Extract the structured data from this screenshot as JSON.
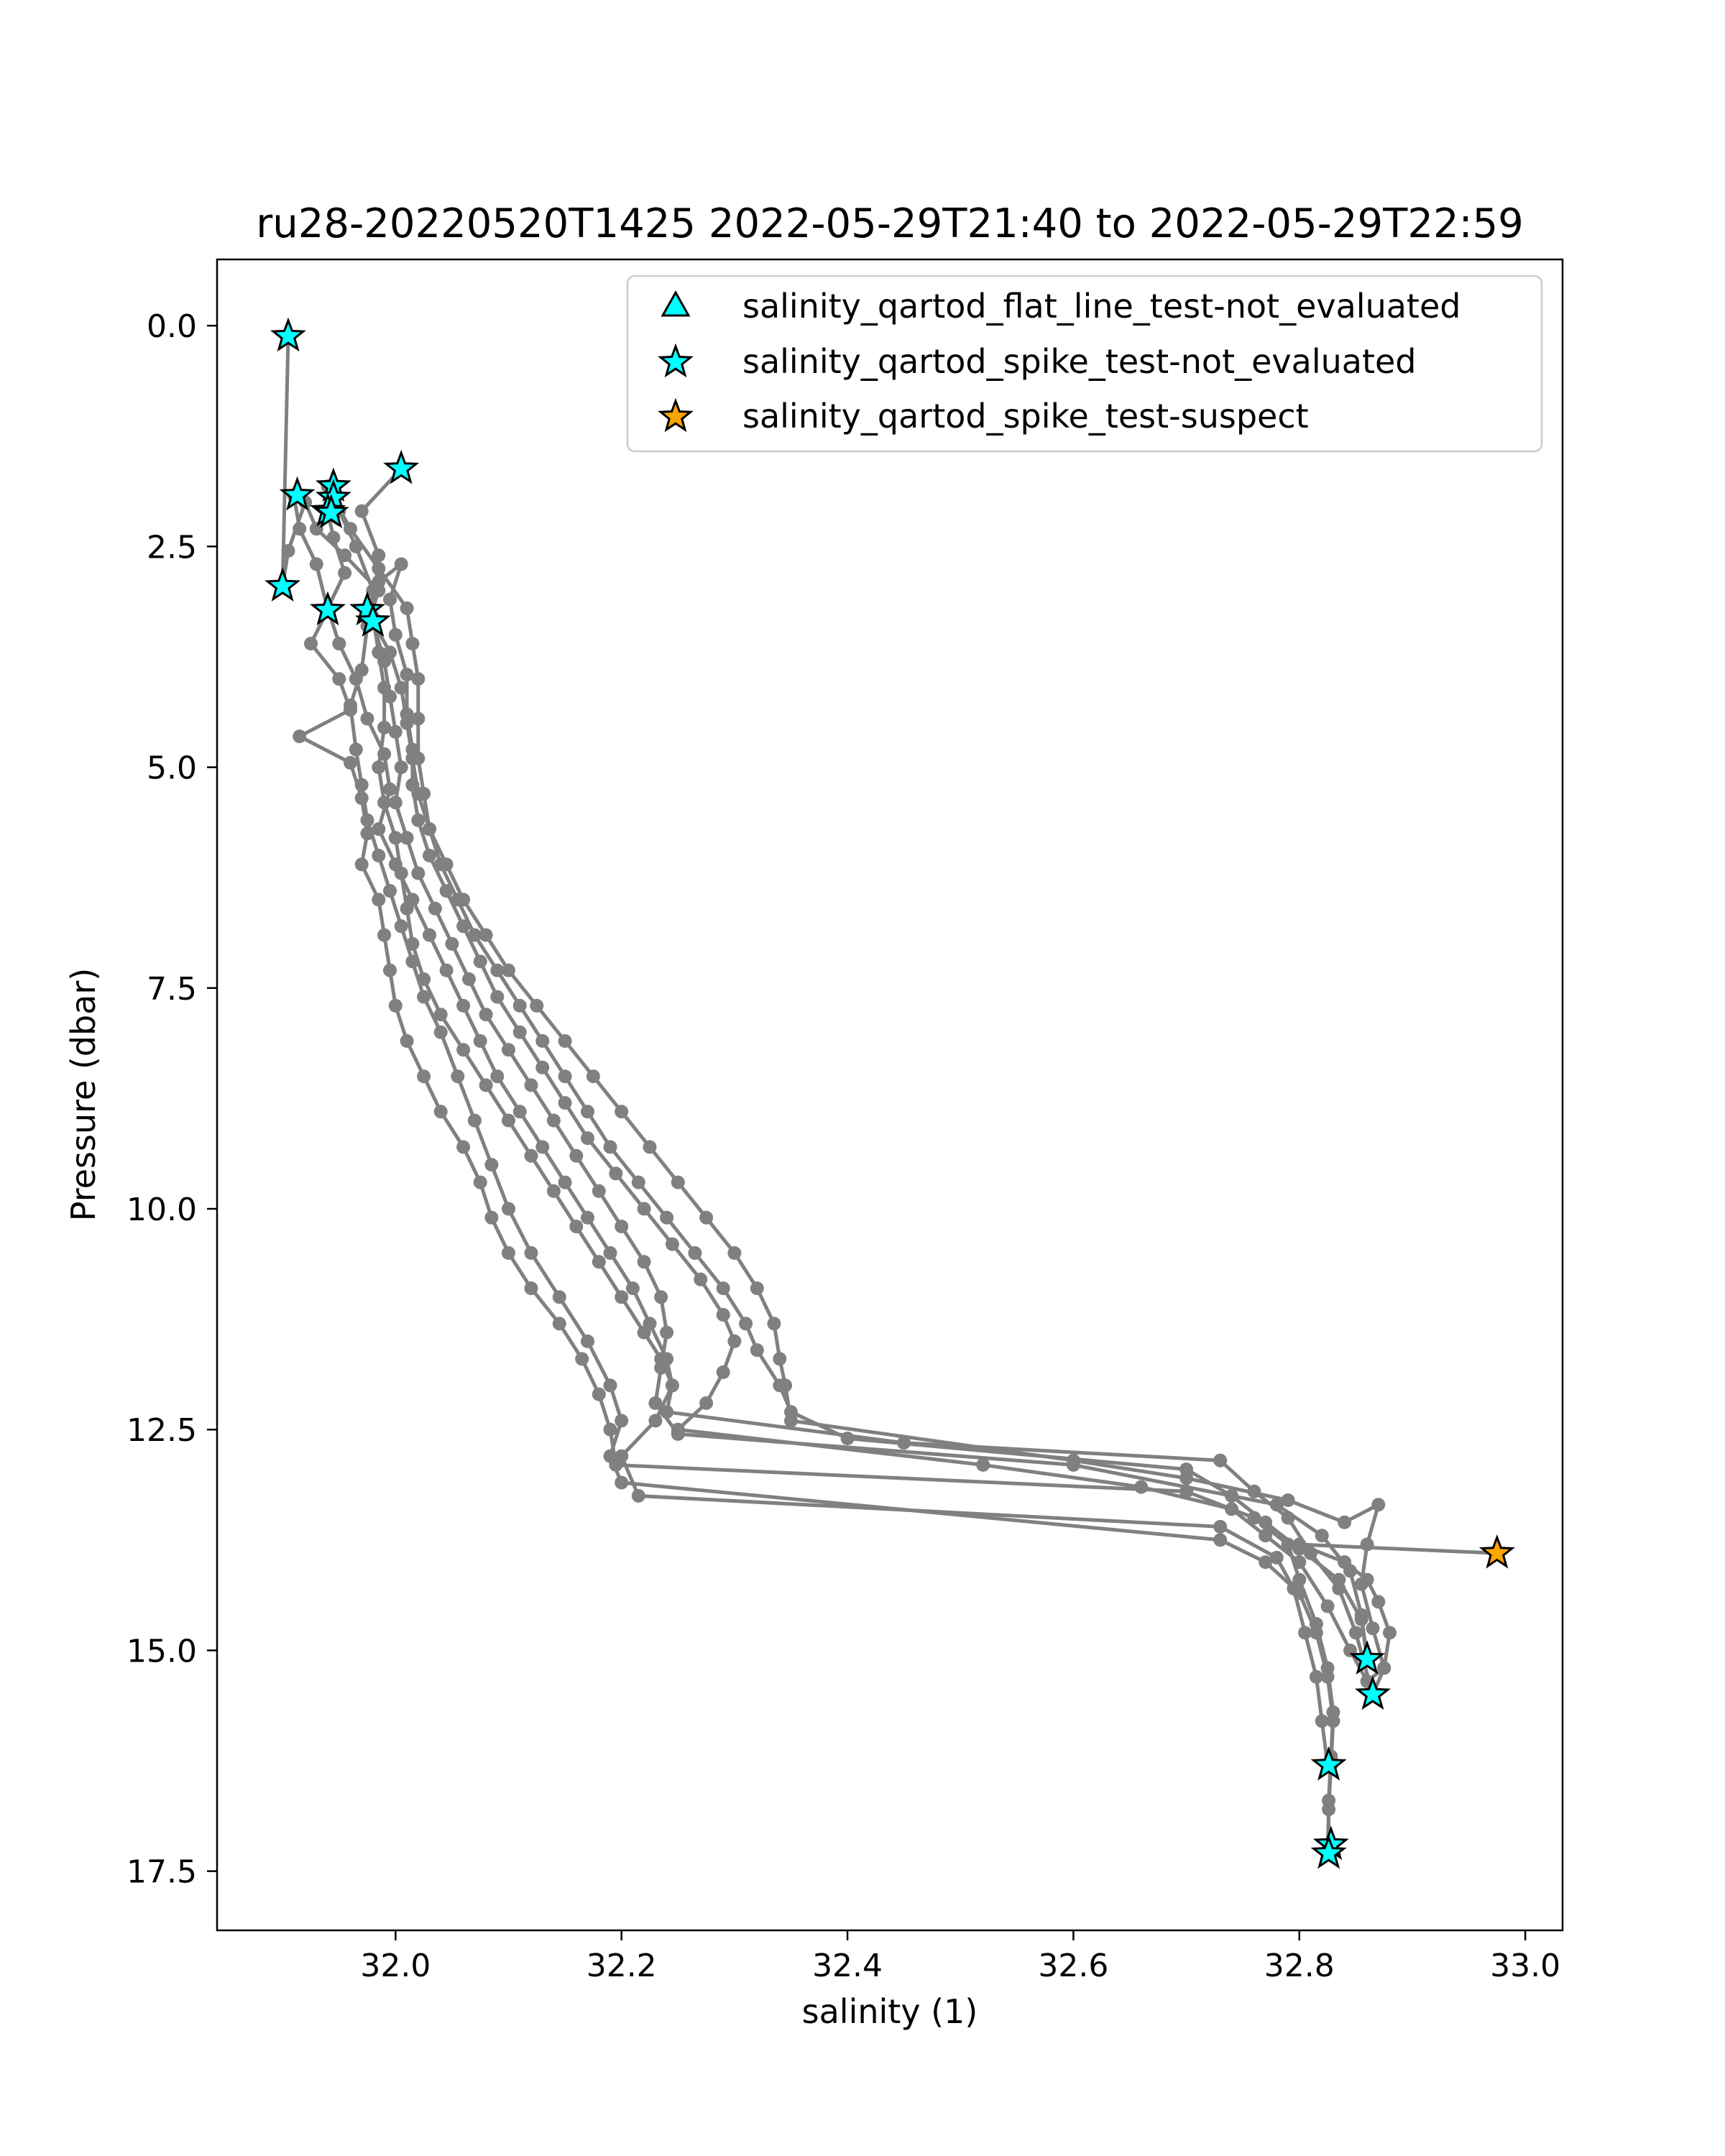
{
  "chart_data": {
    "type": "line",
    "title": "ru28-20220520T1425 2022-05-29T21:40 to 2022-05-29T22:59",
    "xlabel": "salinity (1)",
    "ylabel": "Pressure (dbar)",
    "xlim": [
      31.842,
      33.033
    ],
    "ylim": [
      18.17,
      -0.75
    ],
    "y_inverted": true,
    "grid": false,
    "legend_position": "upper right",
    "x_ticks": [
      "32.0",
      "32.2",
      "32.4",
      "32.6",
      "32.8",
      "33.0"
    ],
    "y_ticks": [
      "0.0",
      "2.5",
      "5.0",
      "7.5",
      "10.0",
      "12.5",
      "15.0",
      "17.5"
    ],
    "colors": {
      "profile_line": "#808080",
      "not_evaluated": "#00ffff",
      "suspect": "#ffa500",
      "marker_edge": "#000000"
    },
    "profiles": [
      [
        [
          31.905,
          0.12
        ],
        [
          31.9,
          2.95
        ],
        [
          31.905,
          2.55
        ],
        [
          31.92,
          2.0
        ],
        [
          31.93,
          2.3
        ],
        [
          31.955,
          2.6
        ],
        [
          31.985,
          3.0
        ],
        [
          31.975,
          3.4
        ],
        [
          31.97,
          3.9
        ],
        [
          31.96,
          4.3
        ],
        [
          31.965,
          4.8
        ],
        [
          31.97,
          5.2
        ],
        [
          31.975,
          5.6
        ],
        [
          31.985,
          6.0
        ],
        [
          31.995,
          6.4
        ],
        [
          32.005,
          6.8
        ],
        [
          32.015,
          7.2
        ],
        [
          32.025,
          7.6
        ],
        [
          32.04,
          8.0
        ],
        [
          32.055,
          8.5
        ],
        [
          32.07,
          9.0
        ],
        [
          32.085,
          9.5
        ],
        [
          32.1,
          10.0
        ],
        [
          32.12,
          10.5
        ],
        [
          32.145,
          11.0
        ],
        [
          32.17,
          11.5
        ],
        [
          32.19,
          12.0
        ],
        [
          32.2,
          12.4
        ],
        [
          32.19,
          12.8
        ],
        [
          32.2,
          13.1
        ],
        [
          32.73,
          13.75
        ],
        [
          32.77,
          14.0
        ],
        [
          32.8,
          14.35
        ],
        [
          32.815,
          14.8
        ],
        [
          32.825,
          15.3
        ],
        [
          32.83,
          15.8
        ],
        [
          32.828,
          16.3
        ],
        [
          32.826,
          16.8
        ],
        [
          32.825,
          17.3
        ]
      ],
      [
        [
          31.94,
          1.82
        ],
        [
          31.95,
          2.1
        ],
        [
          31.965,
          2.5
        ],
        [
          31.98,
          3.0
        ],
        [
          31.98,
          3.35
        ],
        [
          31.99,
          3.8
        ],
        [
          31.995,
          4.2
        ],
        [
          32.0,
          4.6
        ],
        [
          32.005,
          5.0
        ],
        [
          32.0,
          5.4
        ],
        [
          32.01,
          5.8
        ],
        [
          32.02,
          6.2
        ],
        [
          32.035,
          6.6
        ],
        [
          32.05,
          7.0
        ],
        [
          32.065,
          7.4
        ],
        [
          32.08,
          7.8
        ],
        [
          32.1,
          8.2
        ],
        [
          32.12,
          8.6
        ],
        [
          32.14,
          9.0
        ],
        [
          32.16,
          9.4
        ],
        [
          32.18,
          9.8
        ],
        [
          32.2,
          10.2
        ],
        [
          32.22,
          10.6
        ],
        [
          32.235,
          11.0
        ],
        [
          32.24,
          11.4
        ],
        [
          32.235,
          11.8
        ],
        [
          32.23,
          12.2
        ],
        [
          32.25,
          12.55
        ],
        [
          32.6,
          12.9
        ],
        [
          32.78,
          13.35
        ],
        [
          32.82,
          13.7
        ],
        [
          32.845,
          14.1
        ],
        [
          32.855,
          14.6
        ],
        [
          32.86,
          15.1
        ]
      ],
      [
        [
          31.94,
          2.1
        ],
        [
          31.945,
          2.4
        ],
        [
          31.955,
          2.8
        ],
        [
          31.94,
          3.2
        ],
        [
          31.95,
          3.6
        ],
        [
          31.965,
          4.0
        ],
        [
          31.975,
          4.45
        ],
        [
          31.99,
          4.85
        ],
        [
          31.995,
          5.25
        ],
        [
          31.985,
          5.7
        ],
        [
          32.0,
          6.1
        ],
        [
          32.015,
          6.5
        ],
        [
          32.03,
          6.9
        ],
        [
          32.045,
          7.3
        ],
        [
          32.06,
          7.7
        ],
        [
          32.075,
          8.1
        ],
        [
          32.09,
          8.5
        ],
        [
          32.11,
          8.9
        ],
        [
          32.13,
          9.3
        ],
        [
          32.15,
          9.7
        ],
        [
          32.17,
          10.1
        ],
        [
          32.19,
          10.5
        ],
        [
          32.21,
          10.9
        ],
        [
          32.225,
          11.3
        ],
        [
          32.24,
          11.7
        ],
        [
          32.245,
          12.0
        ],
        [
          32.24,
          12.3
        ],
        [
          32.45,
          12.65
        ],
        [
          32.73,
          12.85
        ],
        [
          32.76,
          13.2
        ],
        [
          32.79,
          13.5
        ],
        [
          32.81,
          13.9
        ],
        [
          32.835,
          14.3
        ],
        [
          32.85,
          14.8
        ],
        [
          32.865,
          15.5
        ]
      ],
      [
        [
          32.005,
          1.62
        ],
        [
          31.97,
          2.1
        ],
        [
          31.985,
          2.6
        ],
        [
          31.98,
          3.3
        ],
        [
          31.985,
          3.7
        ],
        [
          31.99,
          4.1
        ],
        [
          31.99,
          4.55
        ],
        [
          31.985,
          5.0
        ],
        [
          31.99,
          5.4
        ],
        [
          32.0,
          5.8
        ],
        [
          32.005,
          6.2
        ],
        [
          32.01,
          6.6
        ],
        [
          32.015,
          7.0
        ],
        [
          32.025,
          7.4
        ],
        [
          32.04,
          7.8
        ],
        [
          32.06,
          8.2
        ],
        [
          32.08,
          8.6
        ],
        [
          32.1,
          9.0
        ],
        [
          32.12,
          9.4
        ],
        [
          32.14,
          9.8
        ],
        [
          32.16,
          10.2
        ],
        [
          32.18,
          10.6
        ],
        [
          32.2,
          11.0
        ],
        [
          32.22,
          11.4
        ],
        [
          32.235,
          11.7
        ],
        [
          32.245,
          12.0
        ],
        [
          32.23,
          12.4
        ],
        [
          32.2,
          12.8
        ],
        [
          32.215,
          13.25
        ],
        [
          32.73,
          13.6
        ],
        [
          32.78,
          13.95
        ],
        [
          32.795,
          14.3
        ],
        [
          32.805,
          14.8
        ],
        [
          32.815,
          15.3
        ],
        [
          32.82,
          15.8
        ],
        [
          32.825,
          16.3
        ]
      ],
      [
        [
          31.91,
          1.92
        ],
        [
          31.915,
          2.3
        ],
        [
          31.93,
          2.7
        ],
        [
          31.94,
          3.22
        ],
        [
          31.925,
          3.6
        ],
        [
          31.95,
          4.0
        ],
        [
          31.96,
          4.35
        ],
        [
          31.915,
          4.65
        ],
        [
          31.96,
          4.95
        ],
        [
          31.97,
          5.35
        ],
        [
          31.975,
          5.75
        ],
        [
          31.97,
          6.1
        ],
        [
          31.985,
          6.5
        ],
        [
          31.99,
          6.9
        ],
        [
          31.995,
          7.3
        ],
        [
          32.0,
          7.7
        ],
        [
          32.01,
          8.1
        ],
        [
          32.025,
          8.5
        ],
        [
          32.04,
          8.9
        ],
        [
          32.06,
          9.3
        ],
        [
          32.075,
          9.7
        ],
        [
          32.085,
          10.1
        ],
        [
          32.1,
          10.5
        ],
        [
          32.12,
          10.9
        ],
        [
          32.145,
          11.3
        ],
        [
          32.165,
          11.7
        ],
        [
          32.18,
          12.1
        ],
        [
          32.19,
          12.5
        ],
        [
          32.195,
          12.9
        ],
        [
          32.7,
          13.2
        ],
        [
          32.76,
          13.5
        ],
        [
          32.79,
          13.8
        ],
        [
          32.8,
          14.2
        ],
        [
          32.815,
          14.7
        ],
        [
          32.825,
          15.2
        ],
        [
          32.83,
          15.7
        ],
        [
          32.828,
          16.2
        ],
        [
          32.826,
          16.7
        ],
        [
          32.826,
          17.2
        ]
      ],
      [
        [
          31.975,
          3.22
        ],
        [
          31.985,
          2.9
        ],
        [
          32.005,
          2.7
        ],
        [
          31.995,
          3.1
        ],
        [
          32.0,
          3.5
        ],
        [
          32.01,
          3.95
        ],
        [
          32.01,
          4.4
        ],
        [
          32.015,
          4.8
        ],
        [
          32.015,
          5.2
        ],
        [
          32.02,
          5.6
        ],
        [
          32.03,
          6.0
        ],
        [
          32.045,
          6.4
        ],
        [
          32.06,
          6.8
        ],
        [
          32.075,
          7.2
        ],
        [
          32.09,
          7.6
        ],
        [
          32.11,
          8.0
        ],
        [
          32.13,
          8.4
        ],
        [
          32.15,
          8.8
        ],
        [
          32.17,
          9.2
        ],
        [
          32.195,
          9.6
        ],
        [
          32.22,
          10.0
        ],
        [
          32.245,
          10.4
        ],
        [
          32.27,
          10.8
        ],
        [
          32.29,
          11.2
        ],
        [
          32.3,
          11.5
        ],
        [
          32.29,
          11.85
        ],
        [
          32.275,
          12.2
        ],
        [
          32.25,
          12.5
        ],
        [
          32.52,
          12.9
        ],
        [
          32.66,
          13.15
        ],
        [
          32.74,
          13.4
        ],
        [
          32.77,
          13.7
        ],
        [
          32.8,
          14.0
        ],
        [
          32.825,
          14.5
        ],
        [
          32.845,
          15.0
        ],
        [
          32.86,
          15.35
        ],
        [
          32.875,
          15.2
        ],
        [
          32.88,
          14.8
        ],
        [
          32.87,
          14.45
        ],
        [
          32.86,
          14.2
        ],
        [
          32.84,
          14.0
        ],
        [
          32.8,
          13.8
        ],
        [
          32.975,
          13.9
        ]
      ],
      [
        [
          31.945,
          1.95
        ],
        [
          31.96,
          2.3
        ],
        [
          31.985,
          2.75
        ],
        [
          32.01,
          3.2
        ],
        [
          32.015,
          3.6
        ],
        [
          32.02,
          4.0
        ],
        [
          32.02,
          4.45
        ],
        [
          32.02,
          4.9
        ],
        [
          32.025,
          5.3
        ],
        [
          32.03,
          5.7
        ],
        [
          32.04,
          6.1
        ],
        [
          32.055,
          6.5
        ],
        [
          32.07,
          6.9
        ],
        [
          32.09,
          7.3
        ],
        [
          32.11,
          7.7
        ],
        [
          32.13,
          8.1
        ],
        [
          32.15,
          8.5
        ],
        [
          32.17,
          8.9
        ],
        [
          32.19,
          9.3
        ],
        [
          32.215,
          9.7
        ],
        [
          32.24,
          10.1
        ],
        [
          32.265,
          10.5
        ],
        [
          32.29,
          10.9
        ],
        [
          32.31,
          11.3
        ],
        [
          32.32,
          11.6
        ],
        [
          32.34,
          12.0
        ],
        [
          32.35,
          12.3
        ],
        [
          32.4,
          12.6
        ],
        [
          32.7,
          12.95
        ],
        [
          32.74,
          13.25
        ],
        [
          32.77,
          13.55
        ],
        [
          32.8,
          13.85
        ],
        [
          32.835,
          14.2
        ],
        [
          32.855,
          14.65
        ],
        [
          32.86,
          15.1
        ]
      ],
      [
        [
          31.98,
          3.35
        ],
        [
          31.995,
          3.7
        ],
        [
          32.005,
          4.1
        ],
        [
          32.01,
          4.5
        ],
        [
          32.015,
          4.9
        ],
        [
          32.02,
          5.3
        ],
        [
          32.03,
          5.7
        ],
        [
          32.045,
          6.1
        ],
        [
          32.06,
          6.5
        ],
        [
          32.08,
          6.9
        ],
        [
          32.1,
          7.3
        ],
        [
          32.125,
          7.7
        ],
        [
          32.15,
          8.1
        ],
        [
          32.175,
          8.5
        ],
        [
          32.2,
          8.9
        ],
        [
          32.225,
          9.3
        ],
        [
          32.25,
          9.7
        ],
        [
          32.275,
          10.1
        ],
        [
          32.3,
          10.5
        ],
        [
          32.32,
          10.9
        ],
        [
          32.335,
          11.3
        ],
        [
          32.34,
          11.7
        ],
        [
          32.345,
          12.0
        ],
        [
          32.35,
          12.4
        ],
        [
          32.6,
          12.85
        ],
        [
          32.7,
          13.05
        ],
        [
          32.79,
          13.3
        ],
        [
          32.84,
          13.55
        ],
        [
          32.87,
          13.35
        ],
        [
          32.86,
          13.8
        ],
        [
          32.855,
          14.25
        ],
        [
          32.865,
          14.75
        ],
        [
          32.875,
          15.2
        ],
        [
          32.865,
          15.5
        ]
      ]
    ],
    "series": [
      {
        "name": "salinity_qartod_flat_line_test-not_evaluated",
        "marker": "triangle",
        "color": "#00ffff",
        "points": []
      },
      {
        "name": "salinity_qartod_spike_test-not_evaluated",
        "marker": "star",
        "color": "#00ffff",
        "points": [
          [
            31.905,
            0.12
          ],
          [
            32.005,
            1.62
          ],
          [
            31.945,
            1.82
          ],
          [
            31.913,
            1.92
          ],
          [
            31.945,
            1.95
          ],
          [
            31.94,
            2.1
          ],
          [
            31.943,
            2.12
          ],
          [
            31.9,
            2.95
          ],
          [
            31.94,
            3.22
          ],
          [
            31.975,
            3.22
          ],
          [
            31.98,
            3.35
          ],
          [
            32.86,
            15.1
          ],
          [
            32.865,
            15.5
          ],
          [
            32.826,
            16.3
          ],
          [
            32.828,
            17.2
          ],
          [
            32.826,
            17.3
          ]
        ]
      },
      {
        "name": "salinity_qartod_spike_test-suspect",
        "marker": "star",
        "color": "#ffa500",
        "points": [
          [
            32.975,
            13.9
          ]
        ]
      }
    ]
  }
}
